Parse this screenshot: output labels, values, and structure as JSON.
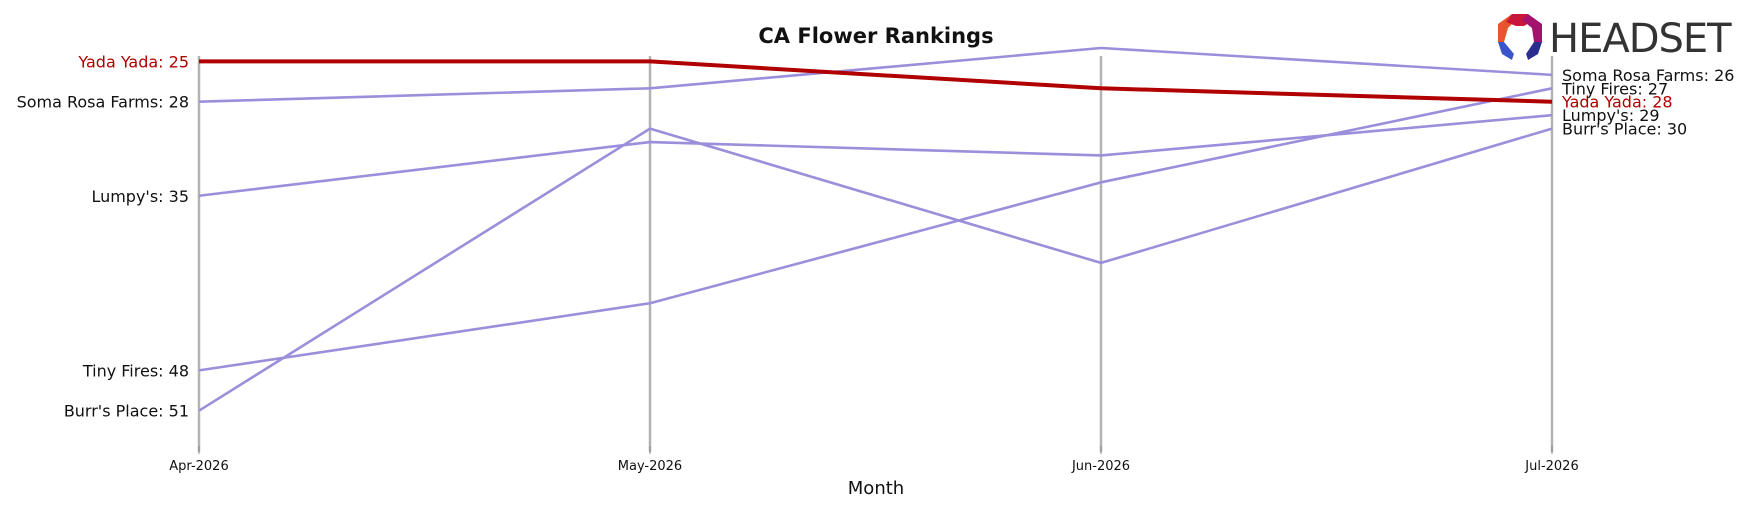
{
  "chart_data": {
    "type": "line",
    "title": "CA Flower Rankings",
    "xlabel": "Month",
    "ylabel": "",
    "x": [
      "Apr-2026",
      "May-2026",
      "Jun-2026",
      "Jul-2026"
    ],
    "ylim": [
      54,
      24
    ],
    "y_inverted": true,
    "grid": "vertical",
    "highlight_color": "#b00000",
    "default_color": "#9b8fdc",
    "label_colors": {
      "highlight": "#b00000",
      "default": "#111111"
    },
    "series": [
      {
        "name": "Yada Yada",
        "values": [
          25,
          25,
          27,
          28
        ],
        "highlight": true,
        "start_label": "Yada Yada: 25",
        "end_label": "Yada Yada: 28"
      },
      {
        "name": "Soma Rosa Farms",
        "values": [
          28,
          27,
          24,
          26
        ],
        "highlight": false,
        "start_label": "Soma Rosa Farms: 28",
        "end_label": "Soma Rosa Farms: 26"
      },
      {
        "name": "Lumpy's",
        "values": [
          35,
          31,
          32,
          29
        ],
        "highlight": false,
        "start_label": "Lumpy's: 35",
        "end_label": "Lumpy's: 29"
      },
      {
        "name": "Tiny Fires",
        "values": [
          48,
          43,
          34,
          27
        ],
        "highlight": false,
        "start_label": "Tiny Fires: 48",
        "end_label": "Tiny Fires: 27"
      },
      {
        "name": "Burr's Place",
        "values": [
          51,
          30,
          40,
          30
        ],
        "highlight": false,
        "start_label": "Burr's Place: 51",
        "end_label": "Burr's Place: 30"
      }
    ]
  },
  "brand": {
    "name": "HEADSET",
    "logo_icon": "headset-hexagon-logo-icon"
  }
}
